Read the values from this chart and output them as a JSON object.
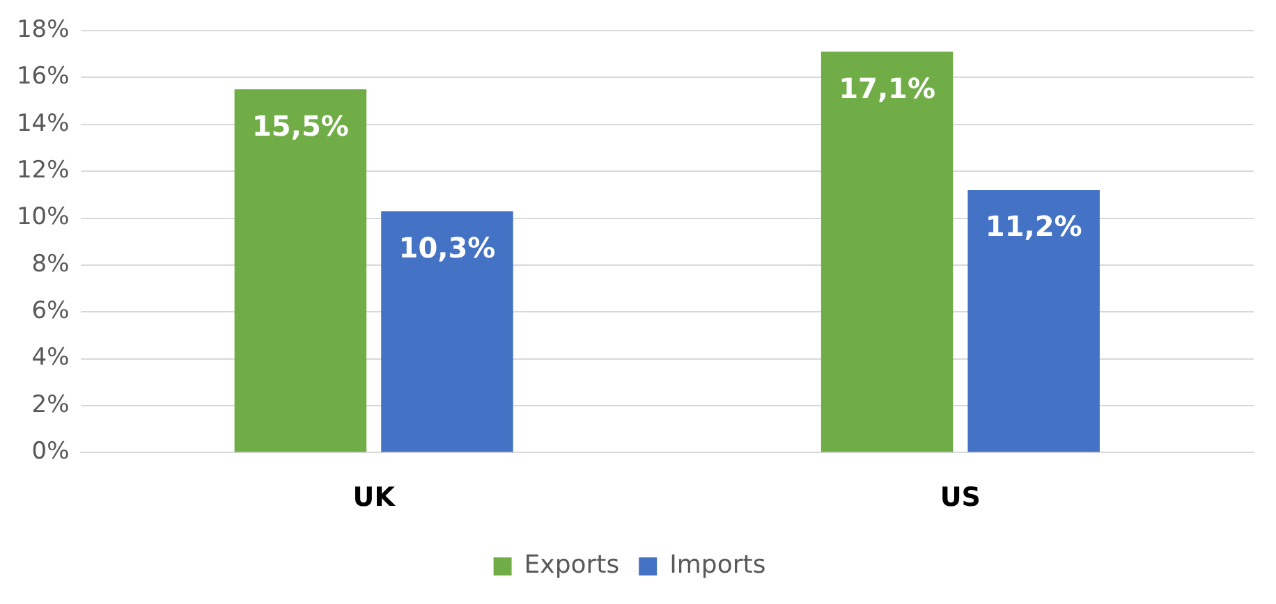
{
  "chart_data": {
    "type": "bar",
    "categories": [
      "UK",
      "US"
    ],
    "series": [
      {
        "name": "Exports",
        "color": "#70ad47",
        "values": [
          15.5,
          17.1
        ],
        "value_labels": [
          "15,5%",
          "17,1%"
        ]
      },
      {
        "name": "Imports",
        "color": "#4472c4",
        "values": [
          10.3,
          11.2
        ],
        "value_labels": [
          "10,3%",
          "11,2%"
        ]
      }
    ],
    "ylim": [
      0,
      18
    ],
    "yticks": [
      {
        "value": 0,
        "label": "0%"
      },
      {
        "value": 2,
        "label": "2%"
      },
      {
        "value": 4,
        "label": "4%"
      },
      {
        "value": 6,
        "label": "6%"
      },
      {
        "value": 8,
        "label": "8%"
      },
      {
        "value": 10,
        "label": "10%"
      },
      {
        "value": 12,
        "label": "12%"
      },
      {
        "value": 14,
        "label": "14%"
      },
      {
        "value": 16,
        "label": "16%"
      },
      {
        "value": 18,
        "label": "18%"
      }
    ],
    "grid": "y",
    "legend": "bottom"
  }
}
